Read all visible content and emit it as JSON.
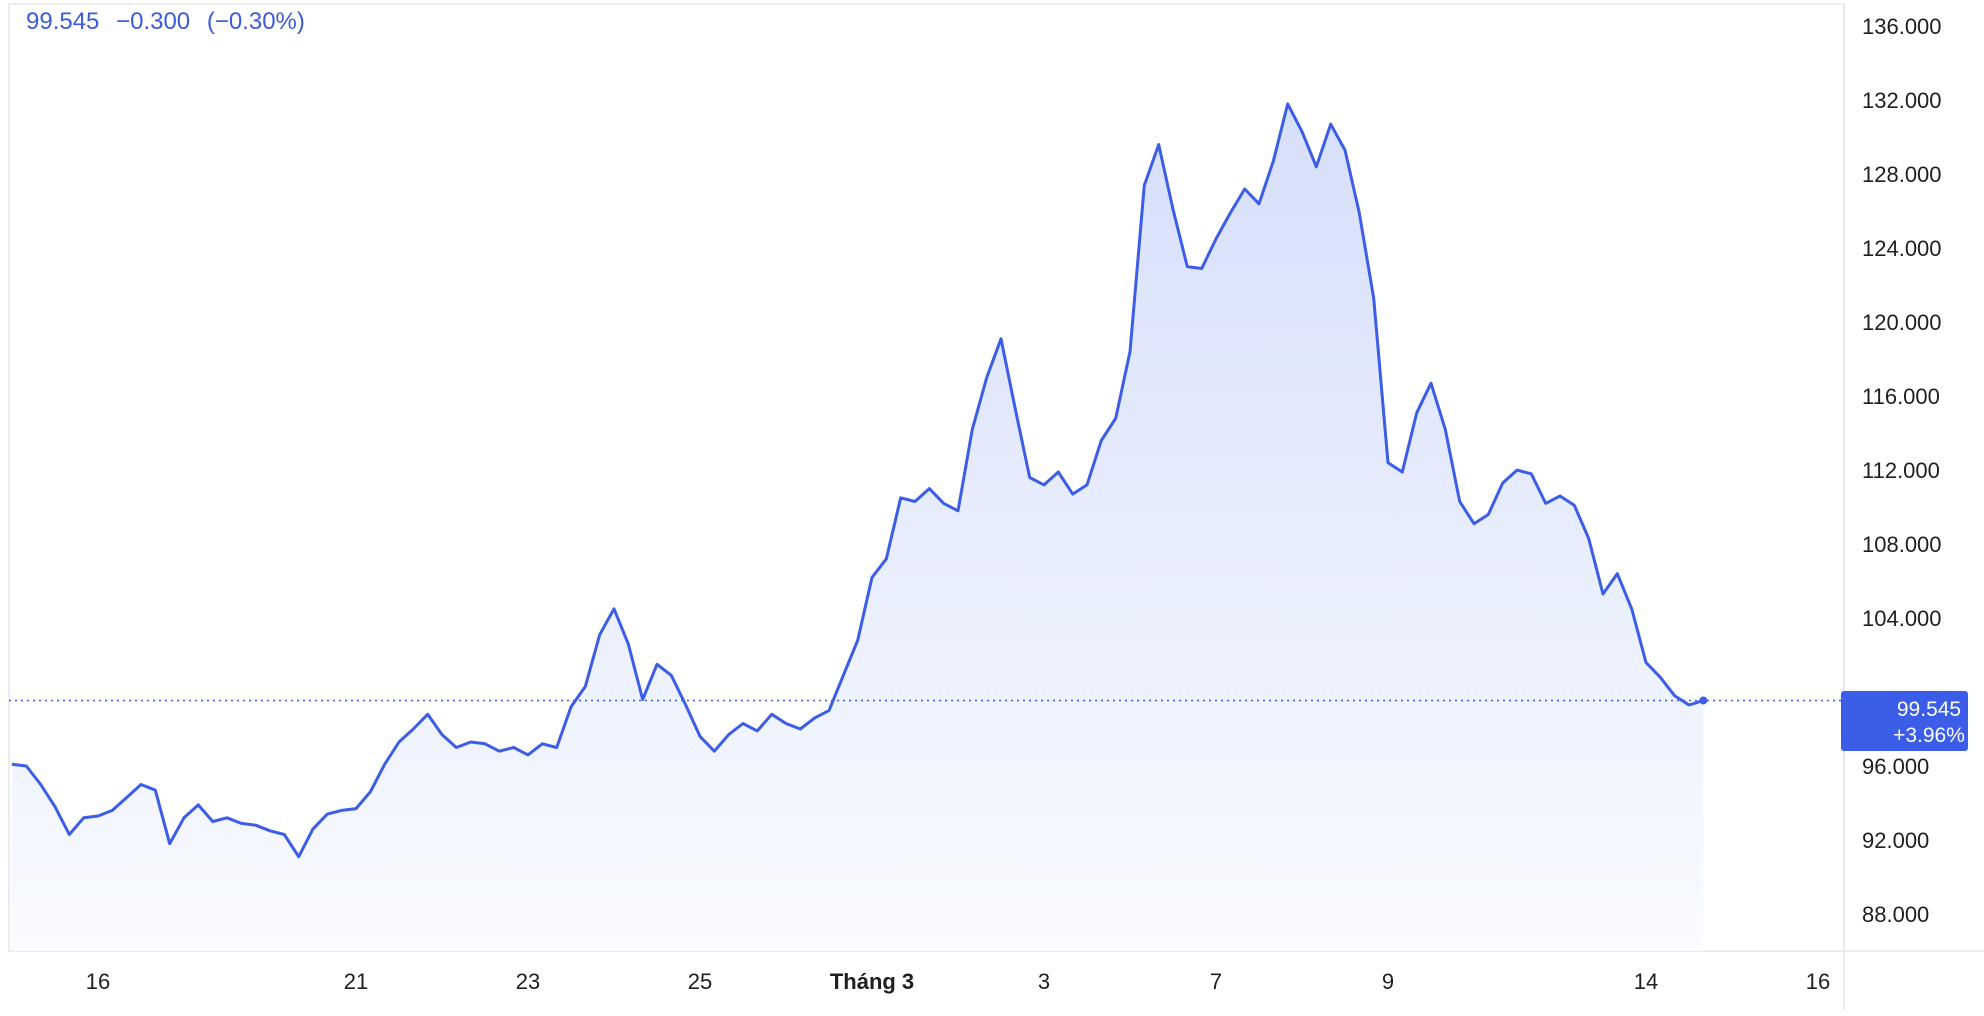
{
  "legend": {
    "last": "99.545",
    "change": "−0.300",
    "change_pct": "(−0.30%)"
  },
  "price_tag": {
    "value": "99.545",
    "change_pct": "+3.96%"
  },
  "colors": {
    "line": "#3b5de7",
    "area_top": "#d6dffa",
    "area_bottom": "#f9fbff",
    "tag_bg": "#3b5de7",
    "grid": "#e6e6e6"
  },
  "chart_data": {
    "type": "area",
    "title": "",
    "xlabel": "",
    "ylabel": "",
    "ylim": [
      86.0,
      137.2
    ],
    "grid": false,
    "last_value": 99.545,
    "y_ticks": [
      {
        "value": 136,
        "label": "136.000"
      },
      {
        "value": 132,
        "label": "132.000"
      },
      {
        "value": 128,
        "label": "128.000"
      },
      {
        "value": 124,
        "label": "124.000"
      },
      {
        "value": 120,
        "label": "120.000"
      },
      {
        "value": 116,
        "label": "116.000"
      },
      {
        "value": 112,
        "label": "112.000"
      },
      {
        "value": 108,
        "label": "108.000"
      },
      {
        "value": 104,
        "label": "104.000"
      },
      {
        "value": 96,
        "label": "96.000"
      },
      {
        "value": 92,
        "label": "92.000"
      },
      {
        "value": 88,
        "label": "88.000"
      }
    ],
    "x_ticks": [
      {
        "index": 6,
        "label": "16",
        "bold": false
      },
      {
        "index": 24,
        "label": "21",
        "bold": false
      },
      {
        "index": 36,
        "label": "23",
        "bold": false
      },
      {
        "index": 48,
        "label": "25",
        "bold": false
      },
      {
        "index": 60,
        "label": "Tháng 3",
        "bold": true
      },
      {
        "index": 72,
        "label": "3",
        "bold": false
      },
      {
        "index": 84,
        "label": "7",
        "bold": false
      },
      {
        "index": 96,
        "label": "9",
        "bold": false
      },
      {
        "index": 114,
        "label": "14",
        "bold": false
      },
      {
        "index": 126,
        "label": "16",
        "bold": false
      }
    ],
    "x_index_range": [
      0,
      126
    ],
    "series": [
      {
        "values": [
          96.1,
          96.0,
          95.0,
          93.8,
          92.3,
          93.2,
          93.3,
          93.6,
          94.3,
          95.0,
          94.7,
          91.8,
          93.2,
          93.9,
          93.0,
          93.2,
          92.9,
          92.8,
          92.5,
          92.3,
          91.1,
          92.6,
          93.4,
          93.6,
          93.7,
          94.6,
          96.1,
          97.3,
          98.0,
          98.8,
          97.7,
          97.0,
          97.3,
          97.2,
          96.8,
          97.0,
          96.6,
          97.2,
          97.0,
          99.2,
          100.3,
          103.1,
          104.5,
          102.6,
          99.6,
          101.5,
          100.9,
          99.3,
          97.6,
          96.8,
          97.7,
          98.3,
          97.9,
          98.8,
          98.3,
          98.0,
          98.6,
          99.0,
          100.9,
          102.8,
          106.2,
          107.2,
          110.5,
          110.3,
          111.0,
          110.2,
          109.8,
          114.2,
          117.0,
          119.1,
          115.3,
          111.6,
          111.2,
          111.9,
          110.7,
          111.2,
          113.6,
          114.8,
          118.4,
          127.4,
          129.6,
          126.1,
          123.0,
          122.9,
          124.5,
          125.9,
          127.2,
          126.4,
          128.7,
          131.8,
          130.3,
          128.4,
          130.7,
          129.3,
          125.9,
          121.3,
          112.4,
          111.9,
          115.1,
          116.7,
          114.2,
          110.3,
          109.1,
          109.6,
          111.3,
          112.0,
          111.8,
          110.2,
          110.6,
          110.1,
          108.3,
          105.3,
          106.4,
          104.5,
          101.6,
          100.8,
          99.8,
          99.3,
          99.545
        ]
      }
    ]
  }
}
